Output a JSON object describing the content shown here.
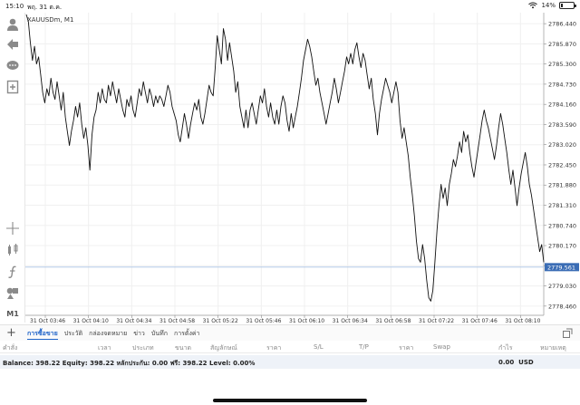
{
  "status_bar": {
    "time": "15:10",
    "date": "พฤ. 31 ต.ค.",
    "battery": "14%",
    "battery_level": 0.14
  },
  "chart": {
    "symbol": "XAUUSDm, M1",
    "current_price": "2779.561"
  },
  "toolbar": {
    "items": [
      {
        "name": "account-icon"
      },
      {
        "name": "trade-icon"
      },
      {
        "name": "chat-icon"
      },
      {
        "name": "new-order-icon"
      },
      {
        "name": "crosshair-icon"
      },
      {
        "name": "indicators-icon"
      },
      {
        "name": "function-icon"
      },
      {
        "name": "objects-icon"
      },
      {
        "name": "timeframe",
        "label": "M1"
      }
    ]
  },
  "chart_data": {
    "type": "line",
    "y_ticks": [
      "2786.440",
      "2785.870",
      "2785.300",
      "2784.730",
      "2784.160",
      "2783.590",
      "2783.020",
      "2782.450",
      "2781.880",
      "2781.310",
      "2780.740",
      "2780.170",
      "2779.600",
      "2779.030",
      "2778.460"
    ],
    "y_tick_values": [
      2786.44,
      2785.87,
      2785.3,
      2784.73,
      2784.16,
      2783.59,
      2783.02,
      2782.45,
      2781.88,
      2781.31,
      2780.74,
      2780.17,
      2779.6,
      2779.03,
      2778.46
    ],
    "x_ticks": [
      "31 Oct 03:46",
      "31 Oct 04:10",
      "31 Oct 04:34",
      "31 Oct 04:58",
      "31 Oct 05:22",
      "31 Oct 05:46",
      "31 Oct 06:10",
      "31 Oct 06:34",
      "31 Oct 06:58",
      "31 Oct 07:22",
      "31 Oct 07:46",
      "31 Oct 08:10"
    ],
    "ylim": [
      2778.2,
      2786.75
    ],
    "xlim": [
      0,
      273
    ],
    "current_price": 2779.561,
    "values": [
      2786.7,
      2786.5,
      2785.9,
      2785.4,
      2785.8,
      2785.3,
      2785.5,
      2785.0,
      2784.5,
      2784.2,
      2784.6,
      2784.4,
      2784.9,
      2784.5,
      2784.3,
      2784.8,
      2784.4,
      2784.0,
      2784.5,
      2783.8,
      2783.4,
      2783.0,
      2783.4,
      2783.7,
      2784.1,
      2783.8,
      2784.2,
      2783.6,
      2783.2,
      2783.5,
      2783.0,
      2782.3,
      2783.3,
      2783.8,
      2784.0,
      2784.5,
      2784.2,
      2784.6,
      2784.3,
      2784.2,
      2784.7,
      2784.4,
      2784.8,
      2784.5,
      2784.2,
      2784.6,
      2784.3,
      2784.0,
      2783.8,
      2784.3,
      2784.1,
      2784.4,
      2784.0,
      2783.8,
      2784.2,
      2784.6,
      2784.4,
      2784.8,
      2784.5,
      2784.2,
      2784.6,
      2784.4,
      2784.1,
      2784.4,
      2784.2,
      2784.4,
      2784.3,
      2784.1,
      2784.4,
      2784.7,
      2784.5,
      2784.1,
      2783.9,
      2783.7,
      2783.3,
      2783.1,
      2783.5,
      2783.9,
      2783.6,
      2783.2,
      2783.6,
      2783.9,
      2784.2,
      2784.0,
      2784.3,
      2783.8,
      2783.6,
      2783.9,
      2784.3,
      2784.7,
      2784.5,
      2784.4,
      2785.2,
      2786.1,
      2785.7,
      2785.3,
      2786.3,
      2786.0,
      2785.4,
      2785.9,
      2785.5,
      2785.1,
      2784.5,
      2784.8,
      2784.1,
      2783.8,
      2783.5,
      2784.0,
      2783.5,
      2784.0,
      2784.2,
      2783.9,
      2783.6,
      2784.0,
      2784.4,
      2784.2,
      2784.6,
      2784.1,
      2783.8,
      2784.2,
      2783.8,
      2783.6,
      2784.0,
      2783.6,
      2784.1,
      2784.4,
      2784.2,
      2783.7,
      2783.4,
      2783.9,
      2783.5,
      2783.8,
      2784.1,
      2784.5,
      2784.9,
      2785.4,
      2785.7,
      2786.0,
      2785.8,
      2785.5,
      2785.1,
      2784.7,
      2784.9,
      2784.5,
      2784.2,
      2783.9,
      2783.6,
      2783.9,
      2784.2,
      2784.5,
      2784.9,
      2784.6,
      2784.2,
      2784.5,
      2784.8,
      2785.1,
      2785.5,
      2785.3,
      2785.6,
      2785.3,
      2785.7,
      2785.9,
      2785.5,
      2785.2,
      2785.6,
      2785.4,
      2785.0,
      2784.6,
      2784.9,
      2784.3,
      2783.9,
      2783.3,
      2783.9,
      2784.3,
      2784.6,
      2784.9,
      2784.7,
      2784.5,
      2784.2,
      2784.5,
      2784.8,
      2784.5,
      2783.7,
      2783.2,
      2783.5,
      2783.1,
      2782.7,
      2782.1,
      2781.6,
      2781.0,
      2780.3,
      2779.8,
      2779.7,
      2780.2,
      2779.8,
      2779.2,
      2778.7,
      2778.6,
      2778.9,
      2779.7,
      2780.6,
      2781.3,
      2781.9,
      2781.5,
      2781.8,
      2781.3,
      2781.9,
      2782.2,
      2782.6,
      2782.4,
      2782.7,
      2783.1,
      2782.8,
      2783.4,
      2783.1,
      2783.3,
      2782.8,
      2782.4,
      2782.1,
      2782.5,
      2782.9,
      2783.3,
      2783.7,
      2784.0,
      2783.7,
      2783.5,
      2783.2,
      2782.9,
      2782.6,
      2783.0,
      2783.5,
      2783.9,
      2783.6,
      2783.2,
      2782.8,
      2782.3,
      2781.9,
      2782.3,
      2781.8,
      2781.3,
      2781.8,
      2782.2,
      2782.5,
      2782.8,
      2782.4,
      2781.9,
      2781.6,
      2781.2,
      2780.8,
      2780.4,
      2780.0,
      2780.2,
      2779.7
    ]
  },
  "bottom_tabs": {
    "add_label": "+",
    "tabs": [
      "การซื้อขาย",
      "ประวัติ",
      "กล่องจดหมาย",
      "ข่าว",
      "บันทึก",
      "การตั้งค่า"
    ]
  },
  "table": {
    "columns": [
      "คำสั่ง",
      "เวลา",
      "ประเภท",
      "ขนาด",
      "สัญลักษณ์",
      "ราคา",
      "S/L",
      "T/P",
      "ราคา",
      "Swap",
      "กำไร",
      "หมายเหตุ"
    ]
  },
  "balance": {
    "summary": "Balance: 398.22 Equity: 398.22 หลักประกัน: 0.00 ฟรี: 398.22 Level: 0.00%",
    "profit": "0.00",
    "currency": "USD"
  },
  "colors": {
    "accent": "#1e63c9",
    "price_line": "#a9c3e6",
    "price_box": "#3b6db5"
  }
}
